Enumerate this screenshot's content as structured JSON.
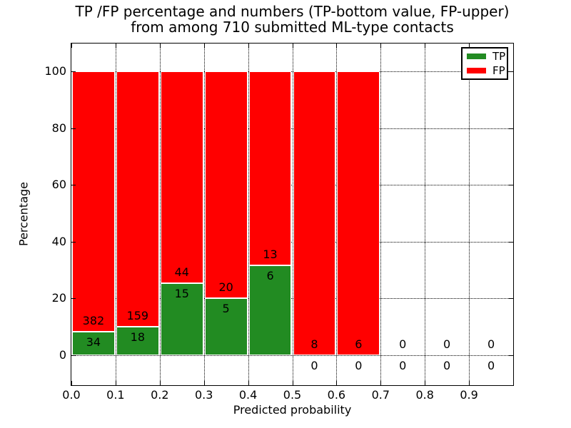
{
  "title": {
    "line1": "TP /FP percentage and numbers (TP-bottom value, FP-upper)",
    "line2": "from among 710 submitted ML-type contacts"
  },
  "axes": {
    "xlabel": "Predicted probability",
    "ylabel": "Percentage",
    "x_tick_labels": [
      "0.0",
      "0.1",
      "0.2",
      "0.3",
      "0.4",
      "0.5",
      "0.6",
      "0.7",
      "0.8",
      "0.9"
    ],
    "y_tick_labels": [
      "0",
      "20",
      "40",
      "60",
      "80",
      "100"
    ],
    "y_tick_values": [
      0,
      20,
      40,
      60,
      80,
      100
    ]
  },
  "legend": {
    "items": [
      {
        "label": "TP",
        "color": "#228B22"
      },
      {
        "label": "FP",
        "color": "#FF0000"
      }
    ],
    "position": "upper right"
  },
  "colors": {
    "tp": "#228B22",
    "fp": "#FF0000",
    "grid": "#000000",
    "text": "#000000",
    "background": "#FFFFFF"
  },
  "chart_data": {
    "type": "bar",
    "stacked": true,
    "normalized": "each bin stacked to 100%",
    "title": "TP /FP percentage and numbers (TP-bottom value, FP-upper) from among 710 submitted ML-type contacts",
    "xlabel": "Predicted probability",
    "ylabel": "Percentage",
    "total_contacts": 710,
    "categories": [
      "0.0-0.1",
      "0.1-0.2",
      "0.2-0.3",
      "0.3-0.4",
      "0.4-0.5",
      "0.5-0.6",
      "0.6-0.7",
      "0.7-0.8",
      "0.8-0.9",
      "0.9-1.0"
    ],
    "series": [
      {
        "name": "TP",
        "counts": [
          34,
          18,
          15,
          5,
          6,
          0,
          0,
          0,
          0,
          0
        ]
      },
      {
        "name": "FP",
        "counts": [
          382,
          159,
          44,
          20,
          13,
          8,
          6,
          0,
          0,
          0
        ]
      }
    ],
    "tp_percent_of_bin": [
      8.2,
      10.2,
      25.4,
      20.0,
      31.6,
      0.0,
      0.0,
      0,
      0,
      0
    ],
    "xlim": [
      0.0,
      1.0
    ],
    "ylim": [
      -10,
      110
    ],
    "grid": true,
    "legend_position": "upper right"
  }
}
